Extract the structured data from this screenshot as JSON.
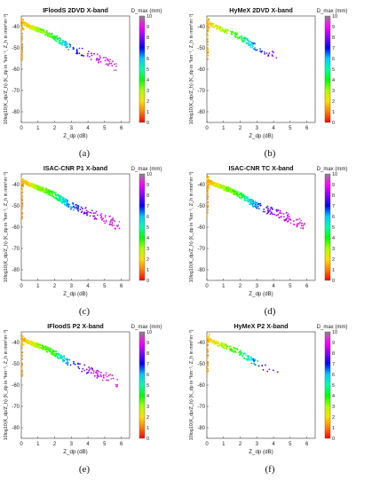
{
  "figure": {
    "panels": [
      {
        "letter": "(a)",
        "title": "IFloodS 2DVD X-band",
        "density": "medium"
      },
      {
        "letter": "(b)",
        "title": "HyMeX 2DVD X-band",
        "density": "sparse"
      },
      {
        "letter": "(c)",
        "title": "ISAC-CNR P1 X-band",
        "density": "dense"
      },
      {
        "letter": "(d)",
        "title": "ISAC-CNR TC X-band",
        "density": "dense"
      },
      {
        "letter": "(e)",
        "title": "IFloodS P2 X-band",
        "density": "medium"
      },
      {
        "letter": "(f)",
        "title": "HyMeX P2 X-band",
        "density": "sparse"
      }
    ],
    "axes": {
      "xlabel": "Z_dp (dB)",
      "ylabel": "10log10(K_dp/Z_h) (K_dp in °km⁻¹, Z_h in mm⁶m⁻³)",
      "xticks": [
        "0",
        "1",
        "2",
        "3",
        "4",
        "5",
        "6"
      ],
      "yticks": [
        "-40",
        "-50",
        "-60",
        "-70",
        "-80"
      ],
      "xlim": [
        0,
        6.5
      ],
      "ylim": [
        -85,
        -35
      ]
    },
    "colorbar": {
      "label": "D_max (mm)",
      "ticks": [
        "10",
        "9",
        "8",
        "7",
        "6",
        "5",
        "4",
        "3",
        "2",
        "1",
        "0"
      ],
      "range": [
        0,
        10
      ]
    }
  },
  "chart_data": {
    "type": "scatter",
    "series_note": "",
    "x_unit": "dB",
    "y_unit": "",
    "xlim": [
      0,
      6.5
    ],
    "ylim": [
      -85,
      -35
    ],
    "color_variable_range": [
      0,
      10
    ],
    "trend": [
      {
        "x": 0.0,
        "y": -38
      },
      {
        "x": 0.5,
        "y": -40
      },
      {
        "x": 1.0,
        "y": -41.5
      },
      {
        "x": 1.5,
        "y": -43
      },
      {
        "x": 2.0,
        "y": -45
      },
      {
        "x": 2.5,
        "y": -47.5
      },
      {
        "x": 3.0,
        "y": -50
      },
      {
        "x": 4.0,
        "y": -53
      },
      {
        "x": 5.0,
        "y": -56
      },
      {
        "x": 5.8,
        "y": -59
      }
    ],
    "dmax_along_trend": [
      {
        "x": 0.0,
        "dmax": 1.5
      },
      {
        "x": 1.0,
        "dmax": 3.0
      },
      {
        "x": 2.0,
        "dmax": 4.0
      },
      {
        "x": 2.5,
        "dmax": 5.5
      },
      {
        "x": 3.0,
        "dmax": 6.5
      },
      {
        "x": 4.0,
        "dmax": 8.0
      },
      {
        "x": 5.0,
        "dmax": 9.0
      },
      {
        "x": 6.0,
        "dmax": 9.5
      }
    ]
  }
}
